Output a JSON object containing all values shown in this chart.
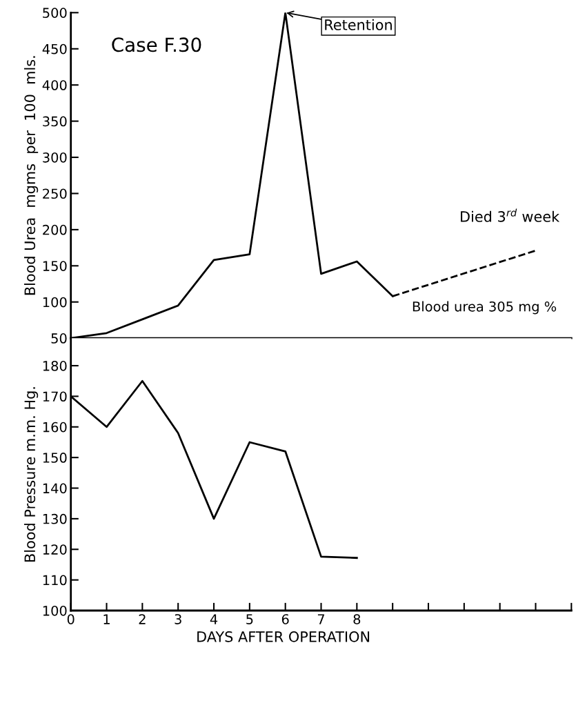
{
  "chart_data": [
    {
      "type": "line",
      "ylabel": "Blood Urea  mgms  per  100  mls.",
      "xlim": [
        0,
        14
      ],
      "ylim": [
        50,
        500
      ],
      "yticks": [
        50,
        100,
        150,
        200,
        250,
        300,
        350,
        400,
        450,
        500
      ],
      "tick_labels": "y",
      "grid": false,
      "legend": false,
      "series": [
        {
          "color": "#000000",
          "x": [
            0,
            1,
            2,
            3,
            4,
            5,
            6,
            7,
            8,
            9
          ],
          "values": [
            50,
            57,
            76,
            95,
            158,
            166,
            500,
            139,
            156,
            108
          ],
          "line_style": "solid"
        },
        {
          "color": "#000000",
          "x": [
            9,
            13
          ],
          "values": [
            108,
            171
          ],
          "line_style": "dashed"
        }
      ],
      "annotations": [
        "Case F.30",
        {
          "text": "Retention",
          "x": 6,
          "y": 500
        },
        {
          "text": "Died 3$^{rd}$ week",
          "x": 13,
          "y": 171
        },
        {
          "text": "Blood urea 305 mg %",
          "x": 9,
          "y": 108
        }
      ]
    },
    {
      "type": "line",
      "xlabel": "DAYS AFTER OPERATION",
      "ylabel": "Blood Pressure m.m. Hg.",
      "xlim": [
        0,
        14
      ],
      "ylim": [
        100,
        189
      ],
      "xticks": [
        0,
        1,
        2,
        3,
        4,
        5,
        6,
        7,
        8,
        {
          "value": 9,
          "label": null
        },
        {
          "value": 10,
          "label": null
        },
        {
          "value": 11,
          "label": null
        },
        {
          "value": 12,
          "label": null
        },
        {
          "value": 13,
          "label": null
        },
        {
          "value": 14,
          "label": null
        }
      ],
      "yticks": [
        100,
        110,
        120,
        130,
        140,
        150,
        160,
        170,
        180
      ],
      "grid": false,
      "legend": false,
      "series": [
        {
          "color": "#000000",
          "x": [
            0,
            1,
            2,
            3,
            4,
            5,
            6,
            7,
            8
          ],
          "values": [
            170,
            160,
            175,
            158,
            130,
            155,
            152,
            117.6,
            117.2
          ],
          "line_style": "solid"
        }
      ]
    }
  ]
}
